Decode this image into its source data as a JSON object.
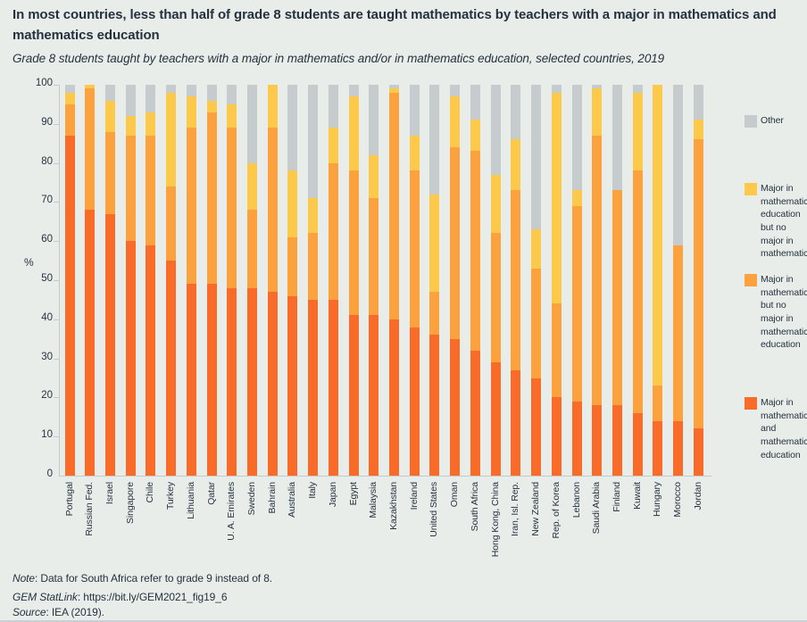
{
  "page": {
    "bg": "#e9edea",
    "text_color": "#25323e"
  },
  "header": {
    "title": "In most countries, less than half of grade 8 students are taught mathematics by teachers with a major in mathematics and mathematics education",
    "subtitle": "Grade 8 students taught by teachers with a major in mathematics and/or in mathematics education, selected countries, 2019"
  },
  "chart_data": {
    "type": "bar",
    "stacked": true,
    "title": "Grade 8 students taught by teachers with a major in mathematics and/or in mathematics education, selected countries, 2019",
    "xlabel": "",
    "ylabel": "%",
    "ylim": [
      0,
      100
    ],
    "y_ticks": [
      0,
      10,
      20,
      30,
      40,
      50,
      60,
      70,
      80,
      90,
      100
    ],
    "grid": false,
    "legend_position": "right",
    "categories": [
      "Portugal",
      "Russian Fed.",
      "Israel",
      "Singapore",
      "Chile",
      "Turkey",
      "Lithuania",
      "Qatar",
      "U. A. Emirates",
      "Sweden",
      "Bahrain",
      "Australia",
      "Italy",
      "Japan",
      "Egypt",
      "Malaysia",
      "Kazakhstan",
      "Ireland",
      "United States",
      "Oman",
      "South Africa",
      "Hong Kong, China",
      "Iran, Isl. Rep.",
      "New Zealand",
      "Rep. of Korea",
      "Lebanon",
      "Saudi Arabia",
      "Finland",
      "Kuwait",
      "Hungary",
      "Morocco",
      "Jordan"
    ],
    "series": [
      {
        "name": "Major in mathematics and mathematics education",
        "color": "#f96b28",
        "values": [
          87,
          68,
          67,
          60,
          59,
          55,
          49,
          49,
          48,
          48,
          47,
          46,
          45,
          45,
          41,
          41,
          40,
          38,
          36,
          35,
          32,
          29,
          27,
          25,
          20,
          19,
          18,
          18,
          16,
          14,
          14,
          12
        ]
      },
      {
        "name": "Major in mathematics but no major in mathematics education",
        "color": "#fba23f",
        "values": [
          8,
          31,
          21,
          27,
          28,
          19,
          40,
          44,
          41,
          20,
          42,
          15,
          17,
          35,
          37,
          30,
          58,
          40,
          11,
          49,
          51,
          33,
          46,
          28,
          24,
          50,
          69,
          55,
          62,
          9,
          45,
          74
        ]
      },
      {
        "name": "Major in mathematics education but no major in mathematics",
        "color": "#fdc94a",
        "values": [
          3,
          1,
          8,
          5,
          6,
          24,
          8,
          3,
          6,
          12,
          11,
          17,
          9,
          9,
          19,
          11,
          1,
          9,
          25,
          13,
          8,
          15,
          13,
          10,
          54,
          4,
          12,
          0,
          20,
          77,
          0,
          5
        ]
      },
      {
        "name": "Other",
        "color": "#c6ccce",
        "values": [
          2,
          0,
          4,
          8,
          7,
          2,
          3,
          4,
          5,
          20,
          0,
          22,
          29,
          11,
          3,
          18,
          1,
          13,
          28,
          3,
          9,
          23,
          14,
          37,
          2,
          27,
          1,
          27,
          2,
          0,
          41,
          9
        ]
      }
    ]
  },
  "legend": {
    "items": [
      {
        "label": "Other",
        "color": "#c6ccce"
      },
      {
        "label": "Major in mathematics education but no major in mathematics",
        "color": "#fdc94a"
      },
      {
        "label": "Major in mathematics but no major in mathematics education",
        "color": "#fba23f"
      },
      {
        "label": "Major in mathematics and mathematics education",
        "color": "#f96b28"
      }
    ]
  },
  "footer": {
    "note_prefix": "Note",
    "note_rest": ": Data for South Africa refer to grade 9 instead of 8.",
    "statlink_prefix": "GEM StatLink",
    "statlink_sep": ": ",
    "statlink_url": "https://bit.ly/GEM2021_fig19_6",
    "source_prefix": "Source",
    "source_rest": ": IEA (2019)."
  }
}
